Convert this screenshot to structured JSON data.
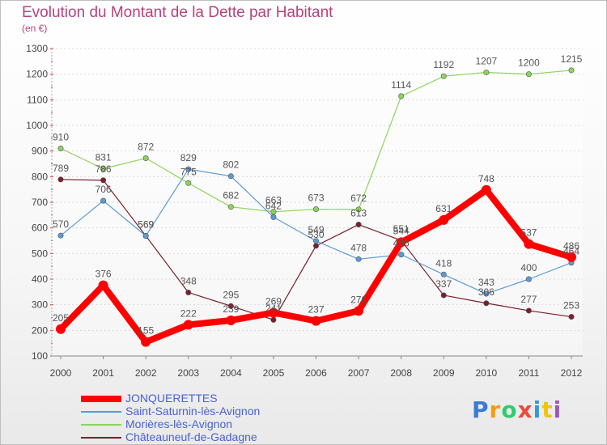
{
  "title": "Evolution du Montant de la Dette par Habitant",
  "subtitle": "(en €)",
  "brand": {
    "text": "Proxiti",
    "colors": [
      "#3a7bd5",
      "#f39c12",
      "#2ecc71",
      "#e74c3c",
      "#3498db",
      "#f1c40f",
      "#9b59b6"
    ]
  },
  "chart_data": {
    "type": "line",
    "title": "Evolution du Montant de la Dette par Habitant",
    "ylabel": "(en €)",
    "xlabel": "",
    "x": [
      "2000",
      "2001",
      "2002",
      "2003",
      "2004",
      "2005",
      "2006",
      "2007",
      "2008",
      "2009",
      "2010",
      "2011",
      "2012"
    ],
    "ylim": [
      100,
      1300
    ],
    "yticks": [
      "100",
      "200",
      "300",
      "400",
      "500",
      "600",
      "700",
      "800",
      "900",
      "1000",
      "1100",
      "1200",
      "1300"
    ],
    "grid": "horizontal",
    "legend_position": "bottom-left",
    "series": [
      {
        "name": "JONQUERETTES",
        "color": "#ff0000",
        "values": [
          205,
          376,
          155,
          222,
          239,
          269,
          237,
          276,
          544,
          631,
          748,
          537,
          486
        ],
        "labels": [
          "205",
          "376",
          "155",
          "222",
          "239",
          "269",
          "237",
          "276",
          "544",
          "631",
          "748",
          "537",
          "486"
        ]
      },
      {
        "name": "Saint-Saturnin-lès-Avignon",
        "color": "#5b9bd5",
        "values": [
          570,
          706,
          569,
          829,
          802,
          642,
          549,
          478,
          496,
          418,
          343,
          400,
          464
        ],
        "labels": [
          "570",
          "706",
          "569",
          "829",
          "802",
          "642",
          "549",
          "478",
          "496",
          "418",
          "343",
          "400",
          "464"
        ]
      },
      {
        "name": "Morières-lès-Avignon",
        "color": "#8cd45a",
        "values": [
          910,
          831,
          872,
          775,
          682,
          663,
          673,
          672,
          1114,
          1192,
          1207,
          1200,
          1215
        ],
        "labels": [
          "910",
          "831",
          "872",
          "775",
          "682",
          "663",
          "673",
          "672",
          "1114",
          "1192",
          "1207",
          "1200",
          "1215"
        ]
      },
      {
        "name": "Châteauneuf-de-Gadagne",
        "color": "#7a1f2b",
        "values": [
          789,
          786,
          569,
          348,
          295,
          241,
          530,
          613,
          551,
          337,
          306,
          277,
          253
        ],
        "labels": [
          "789",
          "786",
          "569",
          "348",
          "295",
          "241",
          "530",
          "613",
          "551",
          "337",
          "306",
          "277",
          "253"
        ]
      }
    ]
  }
}
